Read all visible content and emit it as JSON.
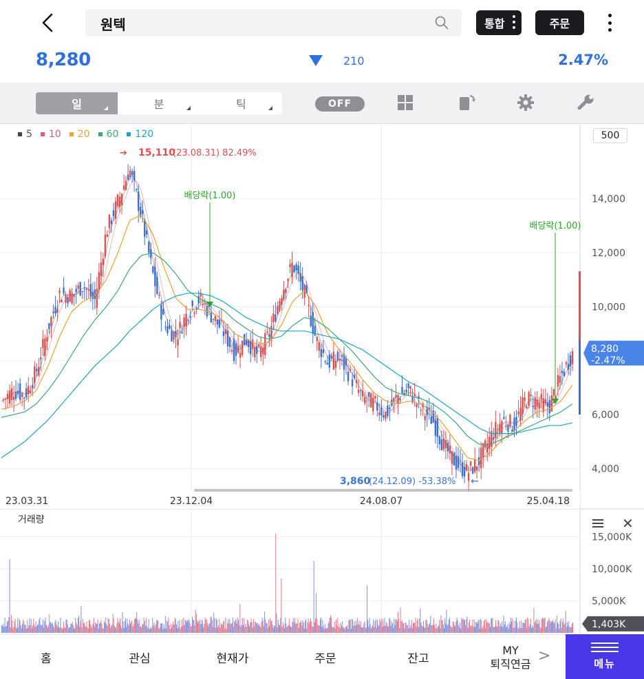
{
  "header": {
    "search_value": "원텍",
    "tonghap_label": "통합",
    "order_label": "주문"
  },
  "quote": {
    "price": "8,280",
    "change": "210",
    "change_pct": "2.47%",
    "direction": "down",
    "color": "#2f6fde"
  },
  "toolbar": {
    "periods": [
      "일",
      "분",
      "틱"
    ],
    "active_period": "일",
    "toggle_label": "OFF",
    "icons": [
      "grid-icon",
      "rotate-icon",
      "settings-icon",
      "wrench-icon"
    ]
  },
  "chart_data": {
    "type": "line",
    "title": "",
    "legend": [
      {
        "name": "5",
        "color": "#444444"
      },
      {
        "name": "10",
        "color": "#e05a78"
      },
      {
        "name": "20",
        "color": "#f0a030"
      },
      {
        "name": "60",
        "color": "#3aaa7a"
      },
      {
        "name": "120",
        "color": "#1aa6c8"
      }
    ],
    "period_button": "500",
    "x_ticks": [
      "23.03.31",
      "23.12.04",
      "24.08.07",
      "25.04.18"
    ],
    "y_ticks": [
      "14,000",
      "12,000",
      "10,000",
      "6,000",
      "4,000"
    ],
    "ylim": [
      3400,
      15600
    ],
    "price_series": [
      6500,
      6900,
      6700,
      7600,
      9200,
      10500,
      10400,
      10800,
      10200,
      12800,
      13900,
      15110,
      13400,
      11200,
      9300,
      8900,
      9800,
      10300,
      9700,
      9100,
      8300,
      8800,
      8200,
      9000,
      10500,
      11600,
      10500,
      8800,
      7900,
      8100,
      7400,
      6600,
      6400,
      6000,
      6700,
      6900,
      6200,
      5800,
      4800,
      4200,
      3860,
      4300,
      5200,
      5800,
      5600,
      6600,
      6500,
      6300,
      7400,
      8280
    ],
    "ma_series": [
      {
        "name": "20",
        "values": [
          6200,
          6300,
          6500,
          6900,
          7800,
          8900,
          9800,
          10200,
          10400,
          11000,
          12000,
          13200,
          13400,
          12700,
          11400,
          10300,
          9900,
          9900,
          9800,
          9500,
          9000,
          8800,
          8600,
          8700,
          9300,
          10200,
          10600,
          10000,
          9000,
          8400,
          7900,
          7300,
          6800,
          6500,
          6400,
          6500,
          6400,
          6100,
          5600,
          5000,
          4400,
          4300,
          4600,
          5100,
          5400,
          5800,
          6100,
          6200,
          6500,
          7100
        ]
      },
      {
        "name": "60",
        "values": [
          5900,
          6000,
          6100,
          6400,
          6900,
          7500,
          8200,
          8900,
          9500,
          10000,
          10600,
          11400,
          11900,
          12000,
          11700,
          11200,
          10600,
          10300,
          10100,
          9900,
          9500,
          9200,
          8900,
          8800,
          8900,
          9300,
          9600,
          9500,
          9200,
          8800,
          8400,
          7900,
          7400,
          7000,
          6800,
          6700,
          6600,
          6400,
          6100,
          5700,
          5200,
          4900,
          4900,
          5100,
          5300,
          5500,
          5700,
          5900,
          6100,
          6400
        ]
      },
      {
        "name": "120",
        "values": [
          4400,
          4700,
          5000,
          5400,
          5800,
          6300,
          6800,
          7300,
          7800,
          8200,
          8600,
          9100,
          9500,
          9900,
          10200,
          10400,
          10500,
          10500,
          10400,
          10200,
          9900,
          9600,
          9400,
          9200,
          9100,
          9100,
          9100,
          9000,
          8900,
          8800,
          8600,
          8400,
          8100,
          7800,
          7500,
          7200,
          7000,
          6700,
          6400,
          6100,
          5800,
          5500,
          5300,
          5300,
          5300,
          5400,
          5500,
          5600,
          5600,
          5700
        ]
      }
    ],
    "annotations": {
      "high": {
        "value": "15,110",
        "detail": "(23.08.31) 82.49%",
        "color": "#e24d4d"
      },
      "low": {
        "value": "3,860",
        "detail": "(24.12.09) -53.38%",
        "color": "#3b76d8"
      },
      "dividend_1": "배당락(1.00)",
      "dividend_2": "배당락(1.00)"
    },
    "current_tag": {
      "price": "8,280",
      "pct": "-2.47%"
    },
    "volume": {
      "title": "거래량",
      "y_ticks": [
        "15,000K",
        "10,000K",
        "5,000K"
      ],
      "current": "1,403K",
      "ylim": [
        0,
        16000
      ],
      "spikes": [
        {
          "x_index": 10,
          "value": 11500
        },
        {
          "x_index": 100,
          "value": 4200
        },
        {
          "x_index": 140,
          "value": 3000
        },
        {
          "x_index": 170,
          "value": 3200
        },
        {
          "x_index": 245,
          "value": 3000
        },
        {
          "x_index": 300,
          "value": 4500
        },
        {
          "x_index": 345,
          "value": 15500
        },
        {
          "x_index": 352,
          "value": 8500
        },
        {
          "x_index": 393,
          "value": 11200
        },
        {
          "x_index": 396,
          "value": 6200
        },
        {
          "x_index": 460,
          "value": 7400
        },
        {
          "x_index": 527,
          "value": 3800
        },
        {
          "x_index": 560,
          "value": 3600
        },
        {
          "x_index": 710,
          "value": 3400
        }
      ]
    }
  },
  "bottom_nav": {
    "items": [
      "홈",
      "관심",
      "현재가",
      "주문",
      "잔고"
    ],
    "my_line1": "MY",
    "my_line2": "퇴직연금",
    "more": ">",
    "menu_label": "메뉴"
  }
}
